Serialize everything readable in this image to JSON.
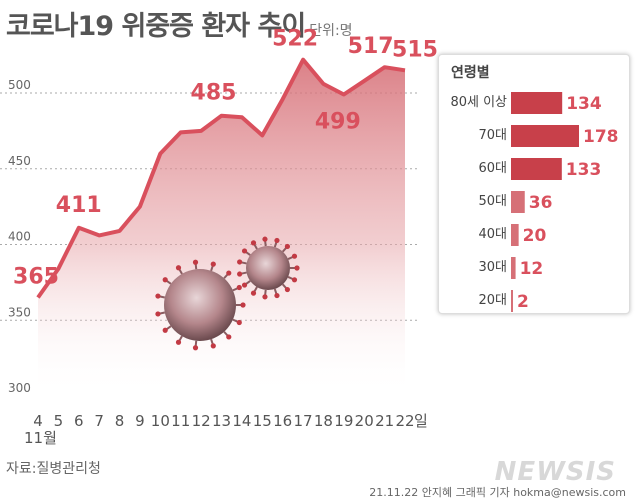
{
  "title": "코로나19 위중증 환자 추이",
  "unit": "단위:명",
  "source": "자료:질병관리청",
  "credit": "21.11.22 안지혜 그래픽 기자 hokma@newsis.com",
  "logo": "NEWSIS",
  "month_label": "11월",
  "day_suffix": "일",
  "colors": {
    "line": "#d9505d",
    "bar": "#c8404a",
    "text": "#555555",
    "grid": "#aaaaaa"
  },
  "chart_data": [
    {
      "type": "area",
      "x": [
        "4",
        "5",
        "6",
        "7",
        "8",
        "9",
        "10",
        "11",
        "12",
        "13",
        "14",
        "15",
        "16",
        "17",
        "18",
        "19",
        "20",
        "21",
        "22"
      ],
      "values": [
        365,
        384,
        411,
        406,
        409,
        425,
        460,
        474,
        475,
        485,
        484,
        472,
        496,
        522,
        506,
        499,
        508,
        517,
        515
      ],
      "labeled_values": {
        "4": 365,
        "6": 411,
        "13": 485,
        "17": 522,
        "19": 499,
        "21": 517,
        "22": 515
      },
      "yticks": [
        300,
        350,
        400,
        450,
        500
      ],
      "ylim": [
        300,
        530
      ],
      "grid": true
    },
    {
      "type": "bar",
      "title": "연령별",
      "categories": [
        "80세 이상",
        "70대",
        "60대",
        "50대",
        "40대",
        "30대",
        "20대"
      ],
      "values": [
        134,
        178,
        133,
        36,
        20,
        12,
        2
      ]
    }
  ]
}
